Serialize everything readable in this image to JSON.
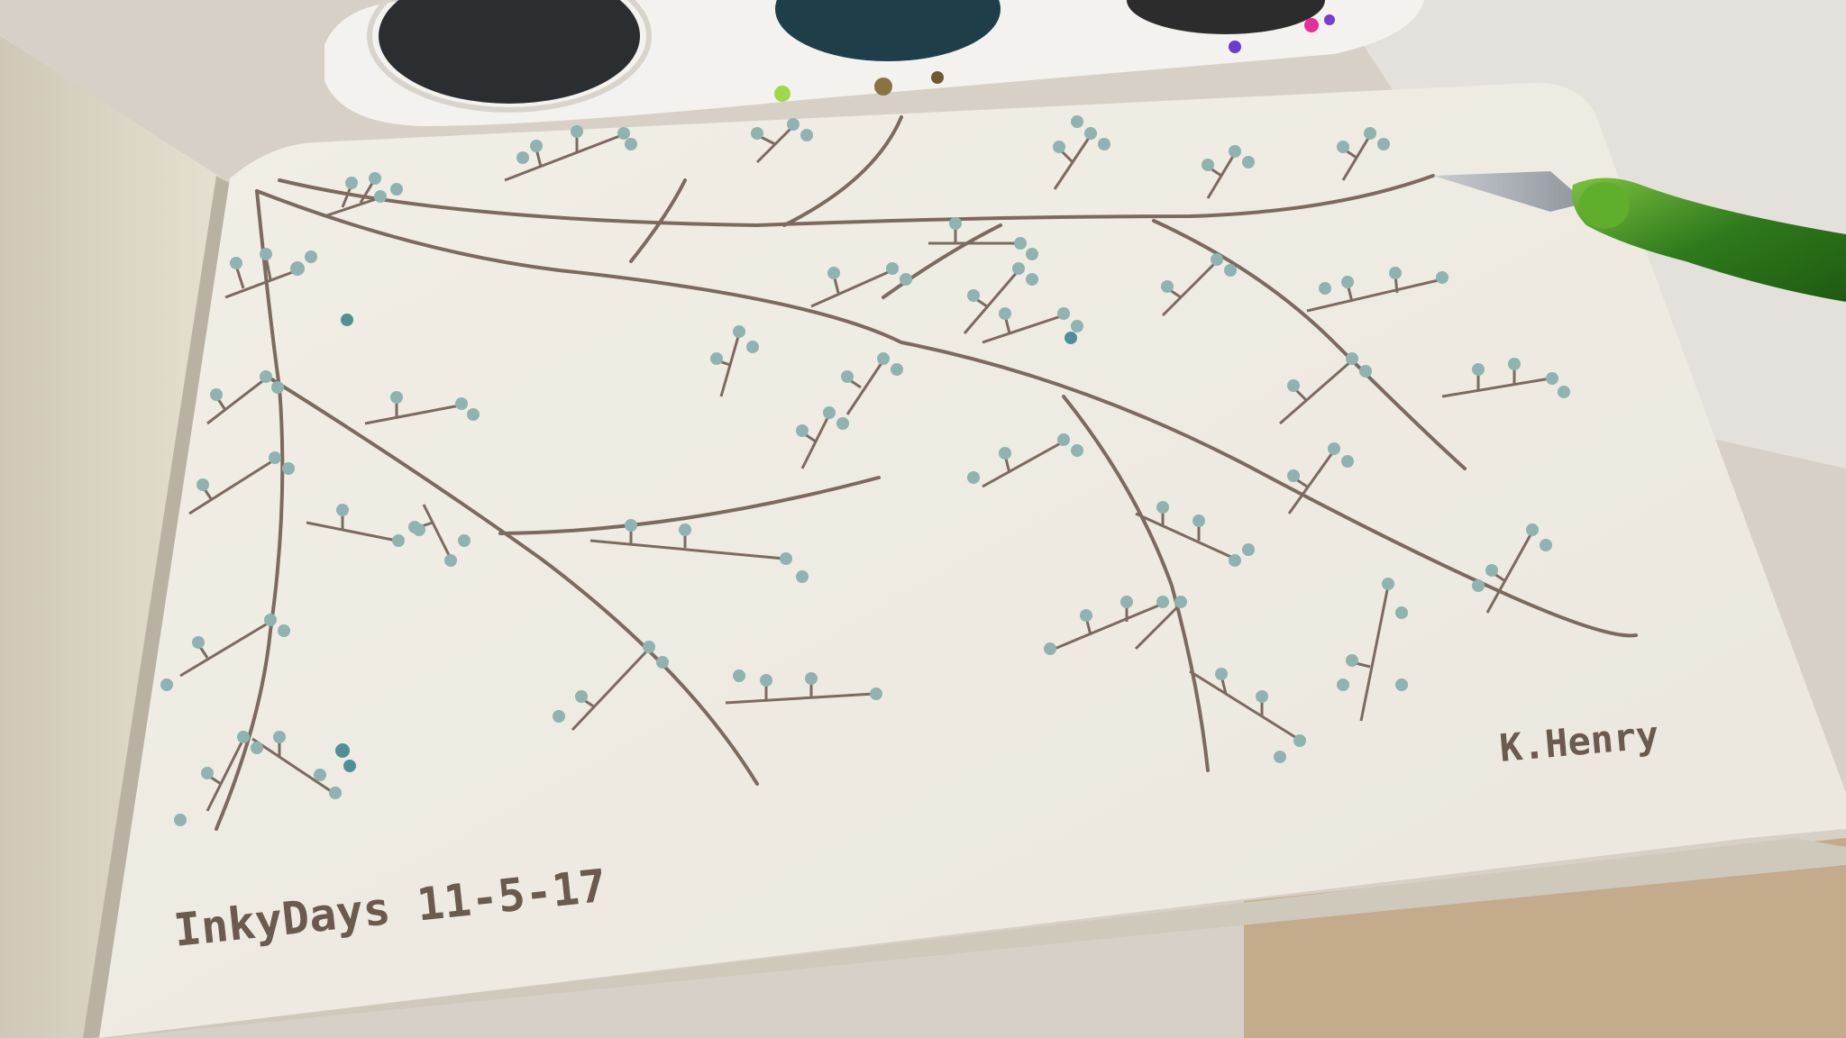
{
  "photo": {
    "caption_left": "InkyDays 11-5-17",
    "signature": "K.Henry"
  },
  "colors": {
    "paper": "#efece3",
    "ink_brown": "#7c6a5f",
    "berry_teal": "#8fb3b0",
    "berry_dark_teal": "#4f8f98",
    "palette_white": "#f4f2ee",
    "pen_green": "#3d8a22",
    "desk": "#c9b59c"
  }
}
